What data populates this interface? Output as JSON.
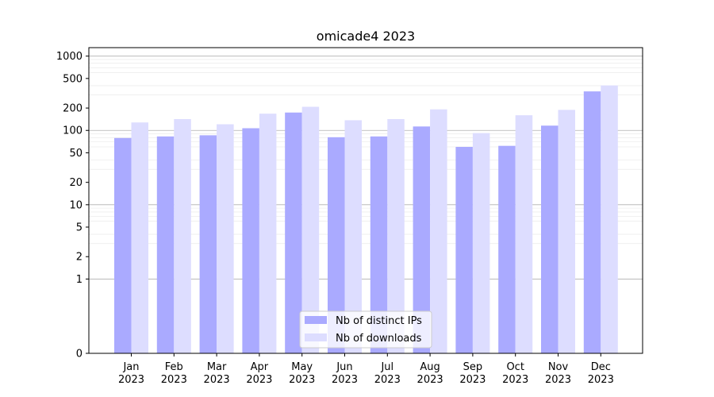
{
  "chart_data": {
    "type": "bar",
    "title": "omicade4 2023",
    "categories": [
      "Jan\n2023",
      "Feb\n2023",
      "Mar\n2023",
      "Apr\n2023",
      "May\n2023",
      "Jun\n2023",
      "Jul\n2023",
      "Aug\n2023",
      "Sep\n2023",
      "Oct\n2023",
      "Nov\n2023",
      "Dec\n2023"
    ],
    "series": [
      {
        "name": "Nb of distinct IPs",
        "color": "#aaaaff",
        "values": [
          79,
          83,
          86,
          107,
          174,
          81,
          83,
          113,
          60,
          62,
          116,
          335
        ]
      },
      {
        "name": "Nb of downloads",
        "color": "#ddddff",
        "values": [
          128,
          142,
          121,
          168,
          208,
          137,
          142,
          192,
          92,
          160,
          189,
          403
        ]
      }
    ],
    "yscale": "symlog",
    "ylim": [
      0,
      1300
    ],
    "yticks": [
      0,
      1,
      2,
      5,
      10,
      20,
      50,
      100,
      200,
      500,
      1000
    ],
    "grid": true,
    "legend": "bottom-center"
  }
}
